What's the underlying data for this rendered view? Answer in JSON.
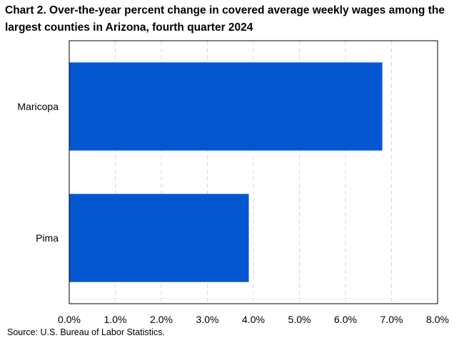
{
  "chart_data": {
    "type": "bar",
    "orientation": "horizontal",
    "title": "Chart 2. Over-the-year percent change in covered average weekly wages among the largest counties in Arizona, fourth quarter 2024",
    "categories": [
      "Maricopa",
      "Pima"
    ],
    "values": [
      6.8,
      3.9
    ],
    "xlim": [
      0,
      8
    ],
    "x_ticks": [
      0,
      1,
      2,
      3,
      4,
      5,
      6,
      7,
      8
    ],
    "x_tick_labels": [
      "0.0%",
      "1.0%",
      "2.0%",
      "3.0%",
      "4.0%",
      "5.0%",
      "6.0%",
      "7.0%",
      "8.0%"
    ],
    "xlabel": "",
    "ylabel": "",
    "grid": "vertical dashed",
    "legend": "none",
    "bar_color": "#0457D0",
    "source": "Source: U.S. Bureau of Labor Statistics."
  }
}
